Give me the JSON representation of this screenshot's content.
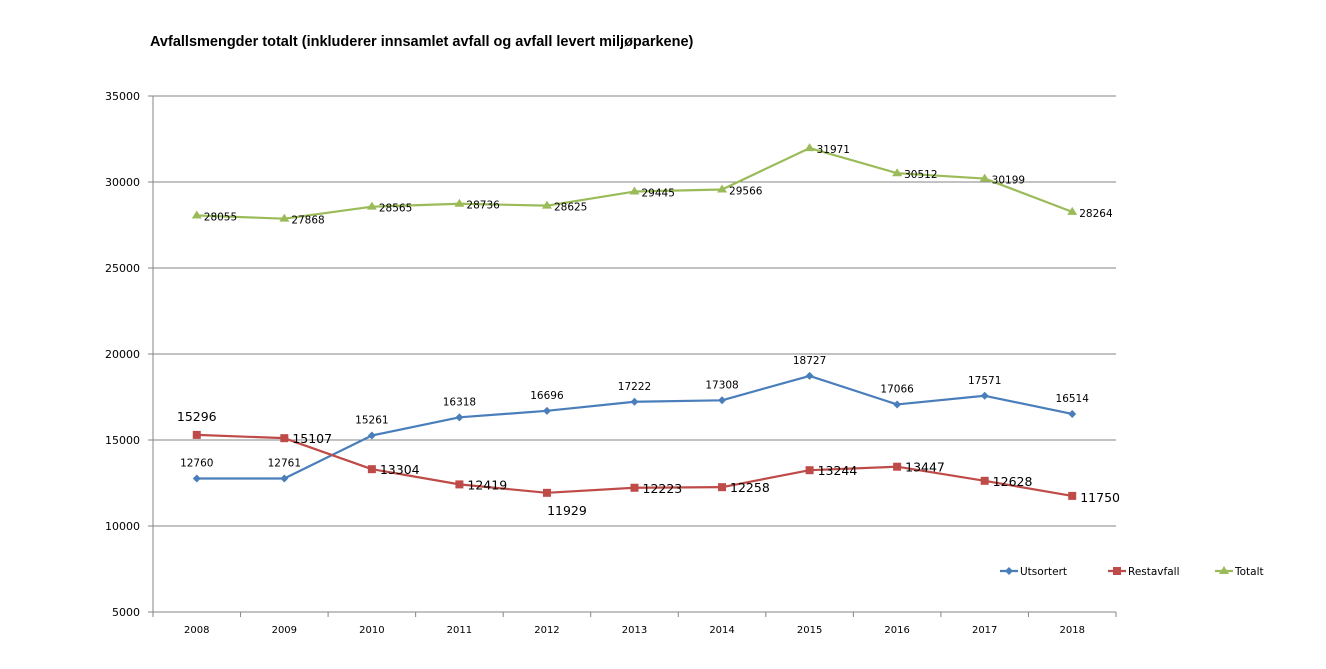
{
  "chart_data": {
    "type": "line",
    "title": "Avfallsmengder totalt (inkluderer innsamlet avfall og avfall levert miljøparkene)",
    "xlabel": "",
    "ylabel": "",
    "categories": [
      "2008",
      "2009",
      "2010",
      "2011",
      "2012",
      "2013",
      "2014",
      "2015",
      "2016",
      "2017",
      "2018"
    ],
    "ylim": [
      5000,
      35000
    ],
    "yticks": [
      5000,
      10000,
      15000,
      20000,
      25000,
      30000,
      35000
    ],
    "ytick_labels": [
      "5000",
      "10000",
      "15000",
      "20000",
      "25000",
      "30000",
      "35000"
    ],
    "grid": true,
    "legend_position": "bottom-right",
    "series": [
      {
        "name": "Utsortert",
        "color": "#4a7ebb",
        "marker": "diamond",
        "values": [
          12760,
          12761,
          15261,
          16318,
          16696,
          17222,
          17308,
          18727,
          17066,
          17571,
          16514
        ],
        "labels": [
          "12760",
          "12761",
          "15261",
          "16318",
          "16696",
          "17222",
          "17308",
          "18727",
          "17066",
          "17571",
          "16514"
        ]
      },
      {
        "name": "Restavfall",
        "color": "#be4b48",
        "marker": "square",
        "values": [
          15296,
          15107,
          13304,
          12419,
          11929,
          12223,
          12258,
          13244,
          13447,
          12628,
          11750
        ],
        "labels": [
          "15296",
          "15107",
          "13304",
          "12419",
          "11929",
          "12223",
          "12258",
          "13244",
          "13447",
          "12628",
          "11750"
        ]
      },
      {
        "name": "Totalt",
        "color": "#9bbb59",
        "marker": "triangle",
        "values": [
          28055,
          27868,
          28565,
          28736,
          28625,
          29445,
          29566,
          31971,
          30512,
          30199,
          28264
        ],
        "labels": [
          "28055",
          "27868",
          "28565",
          "28736",
          "28625",
          "29445",
          "29566",
          "31971",
          "30512",
          "30199",
          "28264"
        ]
      }
    ],
    "colors": {
      "axis": "#868686",
      "grid": "#868686"
    }
  }
}
